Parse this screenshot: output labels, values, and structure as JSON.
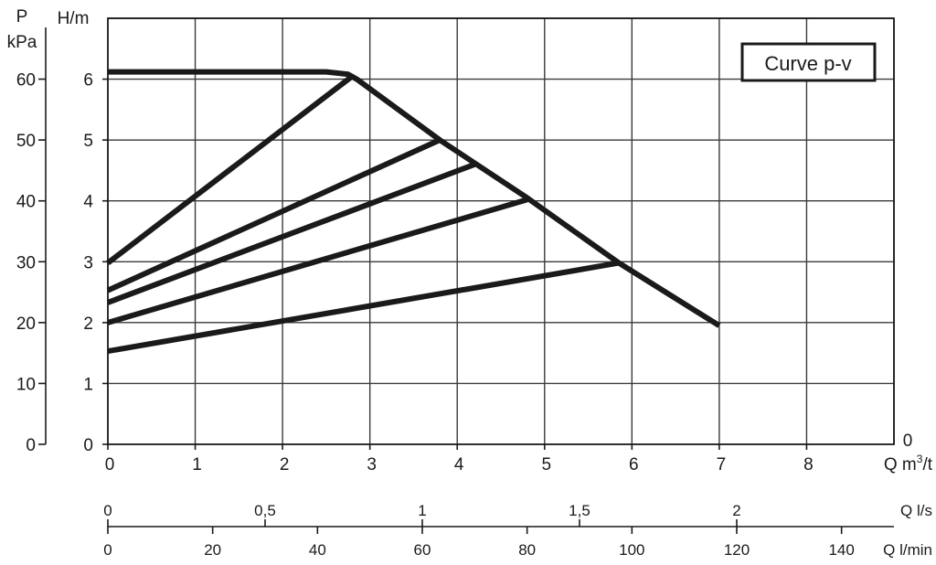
{
  "chart_data": {
    "type": "line",
    "legend_label": "Curve  p-v",
    "legend_position": "top-right",
    "grid": true,
    "y_left": {
      "unit_line1": "P",
      "unit_line2": "kPa",
      "ticks": [
        "0",
        "10",
        "20",
        "30",
        "40",
        "50",
        "60"
      ],
      "range": [
        0,
        70
      ]
    },
    "y_main": {
      "label": "H/m",
      "ticks": [
        "0",
        "1",
        "2",
        "3",
        "4",
        "5",
        "6"
      ],
      "range": [
        0,
        7
      ]
    },
    "x_main": {
      "label_prefix": "Q m",
      "label_sup": "3",
      "label_suffix": "/t",
      "ticks": [
        "0",
        "1",
        "2",
        "3",
        "4",
        "5",
        "6",
        "7",
        "8"
      ],
      "range": [
        0,
        9
      ],
      "right_zero": "0"
    },
    "x_ls": {
      "label": "Q l/s",
      "ticks": [
        {
          "value": 0,
          "text": "0"
        },
        {
          "value": 0.5,
          "text": "0,5"
        },
        {
          "value": 1,
          "text": "1"
        },
        {
          "value": 1.5,
          "text": "1,5"
        },
        {
          "value": 2,
          "text": "2"
        }
      ]
    },
    "x_lmin": {
      "label": "Q l/min",
      "ticks": [
        "0",
        "20",
        "40",
        "60",
        "80",
        "100",
        "120",
        "140"
      ]
    },
    "series": [
      {
        "x": [
          0,
          2.5,
          2.75,
          2.85,
          3.8,
          4.8,
          5.85,
          7.0
        ],
        "y": [
          6.12,
          6.12,
          6.08,
          6.0,
          5.0,
          4.05,
          2.98,
          1.95
        ]
      },
      {
        "x": [
          0,
          2.8
        ],
        "y": [
          2.98,
          6.05
        ]
      },
      {
        "x": [
          0,
          3.8
        ],
        "y": [
          2.53,
          5.0
        ]
      },
      {
        "x": [
          0,
          4.2
        ],
        "y": [
          2.33,
          4.6
        ]
      },
      {
        "x": [
          0,
          4.8
        ],
        "y": [
          2.0,
          4.02
        ]
      },
      {
        "x": [
          0,
          5.85
        ],
        "y": [
          1.53,
          2.98
        ]
      }
    ]
  }
}
